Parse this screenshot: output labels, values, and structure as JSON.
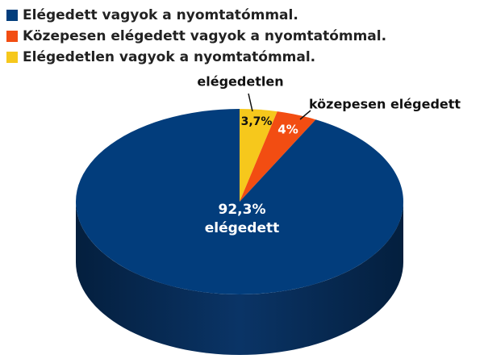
{
  "chart_data": {
    "type": "pie",
    "legend": [
      "Elégedett vagyok a nyomtatómmal.",
      "Közepesen elégedett vagyok a nyomtatómmal.",
      "Elégedetlen vagyok a nyomtatómmal."
    ],
    "categories": [
      "elégedett",
      "közepesen elégedett",
      "elégedetlen"
    ],
    "values": [
      92.3,
      4,
      3.7
    ],
    "value_labels": [
      "92,3%",
      "4%",
      "3,7%"
    ],
    "colors": [
      "#023d7c",
      "#f24d12",
      "#f6c81c"
    ]
  }
}
